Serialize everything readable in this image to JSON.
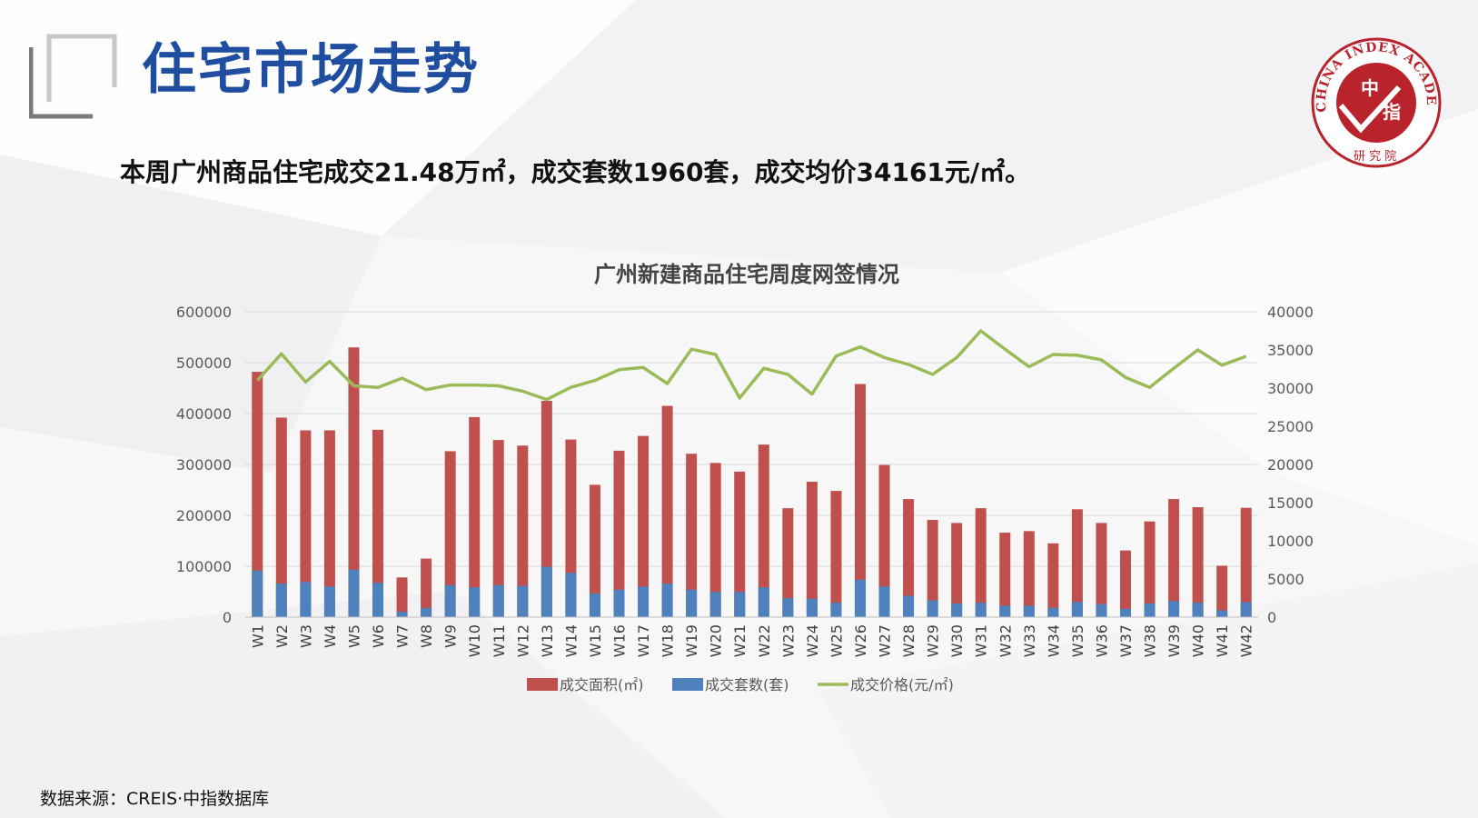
{
  "page": {
    "title": "住宅市场走势",
    "summary": "本周广州商品住宅成交21.48万㎡，成交套数1960套，成交均价34161元/㎡。",
    "source": "数据来源：CREIS·中指数据库"
  },
  "logo": {
    "ring_text": "CHINA INDEX ACADEMY",
    "center_text_1": "中",
    "center_text_2": "指",
    "bottom_text": "研究院",
    "color": "#b8232c"
  },
  "colors": {
    "title_blue": "#1f4ea0",
    "area_bar": "#c0504d",
    "units_bar": "#4f81bd",
    "price_line": "#9bbb59"
  },
  "chart_data": {
    "type": "bar",
    "title": "广州新建商品住宅周度网签情况",
    "categories": [
      "W1",
      "W2",
      "W3",
      "W4",
      "W5",
      "W6",
      "W7",
      "W8",
      "W9",
      "W10",
      "W11",
      "W12",
      "W13",
      "W14",
      "W15",
      "W16",
      "W17",
      "W18",
      "W19",
      "W20",
      "W21",
      "W22",
      "W23",
      "W24",
      "W25",
      "W26",
      "W27",
      "W28",
      "W29",
      "W30",
      "W31",
      "W32",
      "W33",
      "W34",
      "W35",
      "W36",
      "W37",
      "W38",
      "W39",
      "W40",
      "W41",
      "W42"
    ],
    "y_left": {
      "min": 0,
      "max": 600000,
      "ticks": [
        0,
        100000,
        200000,
        300000,
        400000,
        500000,
        600000
      ]
    },
    "y_right": {
      "min": 0,
      "max": 40000,
      "ticks": [
        0,
        5000,
        10000,
        15000,
        20000,
        25000,
        30000,
        35000,
        40000
      ]
    },
    "series": [
      {
        "name": "成交面积(㎡)",
        "type": "bar",
        "axis": "left",
        "values": [
          482000,
          392000,
          367000,
          367000,
          530000,
          368000,
          78000,
          115000,
          326000,
          393000,
          348000,
          337000,
          425000,
          349000,
          260000,
          327000,
          356000,
          415000,
          321000,
          303000,
          286000,
          339000,
          214000,
          266000,
          248000,
          458000,
          299000,
          232000,
          191000,
          185000,
          214000,
          166000,
          169000,
          145000,
          212000,
          185000,
          131000,
          188000,
          232000,
          216000,
          101000,
          214800
        ]
      },
      {
        "name": "成交套数(套)",
        "type": "bar",
        "axis": "right",
        "values": [
          6100,
          4400,
          4600,
          4000,
          6200,
          4500,
          700,
          1200,
          4200,
          3900,
          4200,
          4100,
          6600,
          5800,
          3100,
          3600,
          4000,
          4400,
          3600,
          3300,
          3300,
          3900,
          2500,
          2400,
          1900,
          4900,
          4000,
          2800,
          2200,
          1800,
          1900,
          1500,
          1500,
          1200,
          2000,
          1700,
          1100,
          1800,
          2100,
          1900,
          900,
          1960
        ]
      },
      {
        "name": "成交价格(元/㎡)",
        "type": "line",
        "axis": "right",
        "values": [
          31000,
          34500,
          30800,
          33500,
          30300,
          30100,
          31300,
          29800,
          30400,
          30400,
          30300,
          29600,
          28500,
          30100,
          31000,
          32400,
          32700,
          30600,
          35100,
          34400,
          28700,
          32600,
          31800,
          29200,
          34200,
          35400,
          34000,
          33100,
          31800,
          34000,
          37500,
          35100,
          32800,
          34400,
          34300,
          33700,
          31400,
          30100,
          32600,
          35000,
          33000,
          34161
        ]
      }
    ],
    "legend_position": "bottom",
    "grid": true
  }
}
